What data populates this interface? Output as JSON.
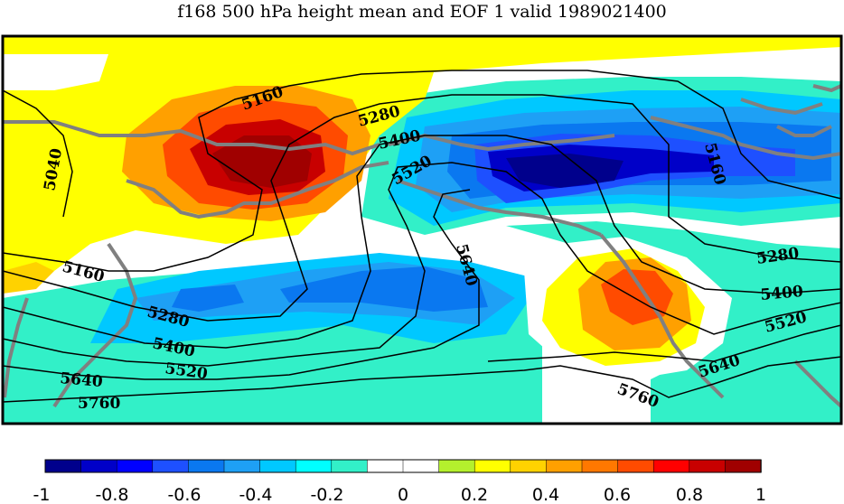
{
  "title": "f168 500 hPa height mean and EOF 1 valid 1989021400",
  "contours": [
    {
      "label": "5040",
      "value": 5040
    },
    {
      "label": "5160",
      "value": 5160
    },
    {
      "label": "5280",
      "value": 5280
    },
    {
      "label": "5400",
      "value": 5400
    },
    {
      "label": "5520",
      "value": 5520
    },
    {
      "label": "5640",
      "value": 5640
    },
    {
      "label": "5760",
      "value": 5760
    }
  ],
  "colorbar": {
    "ticks": [
      "-1",
      "-0.8",
      "-0.6",
      "-0.4",
      "-0.2",
      "0",
      "0.2",
      "0.4",
      "0.6",
      "0.8",
      "1"
    ],
    "colors": [
      "#00008c",
      "#0000c8",
      "#0000ff",
      "#1e50ff",
      "#0a78f0",
      "#1ea0f5",
      "#00c8ff",
      "#00ffff",
      "#32f0c8",
      "#ffffff",
      "#ffffff",
      "#b4f02d",
      "#ffff00",
      "#ffd200",
      "#ffa000",
      "#ff7800",
      "#ff4b00",
      "#ff0000",
      "#c80000",
      "#a00000"
    ]
  },
  "colors": {
    "contour": "#000000",
    "coast": "#808080",
    "frame": "#000000"
  }
}
